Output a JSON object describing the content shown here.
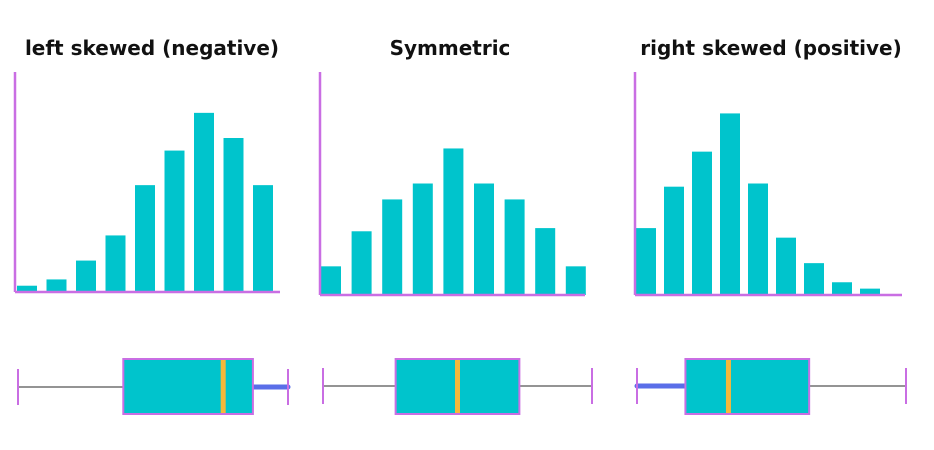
{
  "colors": {
    "bar": "#00c4cc",
    "axis": "#c96ee3",
    "median": "#f6b83b",
    "whisker_highlight": "#5a6ee8",
    "whisker": "#555555"
  },
  "chart_data": [
    {
      "type": "bar",
      "title": "left skewed (negative)",
      "values": [
        2,
        4,
        10,
        18,
        34,
        45,
        57,
        49,
        34
      ],
      "ylim": [
        0,
        70
      ],
      "grid": false,
      "boxplot": {
        "min": 0,
        "q1": 39,
        "median": 76,
        "q3": 87,
        "max": 100,
        "whisker_emphasis": "upper"
      }
    },
    {
      "type": "bar",
      "title": "Symmetric",
      "values": [
        9,
        20,
        30,
        35,
        46,
        35,
        30,
        21,
        9
      ],
      "ylim": [
        0,
        70
      ],
      "grid": false,
      "boxplot": {
        "min": 0,
        "q1": 27,
        "median": 50,
        "q3": 73,
        "max": 100,
        "whisker_emphasis": "none"
      }
    },
    {
      "type": "bar",
      "title": "right skewed (positive)",
      "values": [
        21,
        34,
        45,
        57,
        35,
        18,
        10,
        4,
        2
      ],
      "ylim": [
        0,
        70
      ],
      "grid": false,
      "boxplot": {
        "min": 0,
        "q1": 18,
        "median": 34,
        "q3": 64,
        "max": 100,
        "whisker_emphasis": "lower"
      }
    }
  ]
}
